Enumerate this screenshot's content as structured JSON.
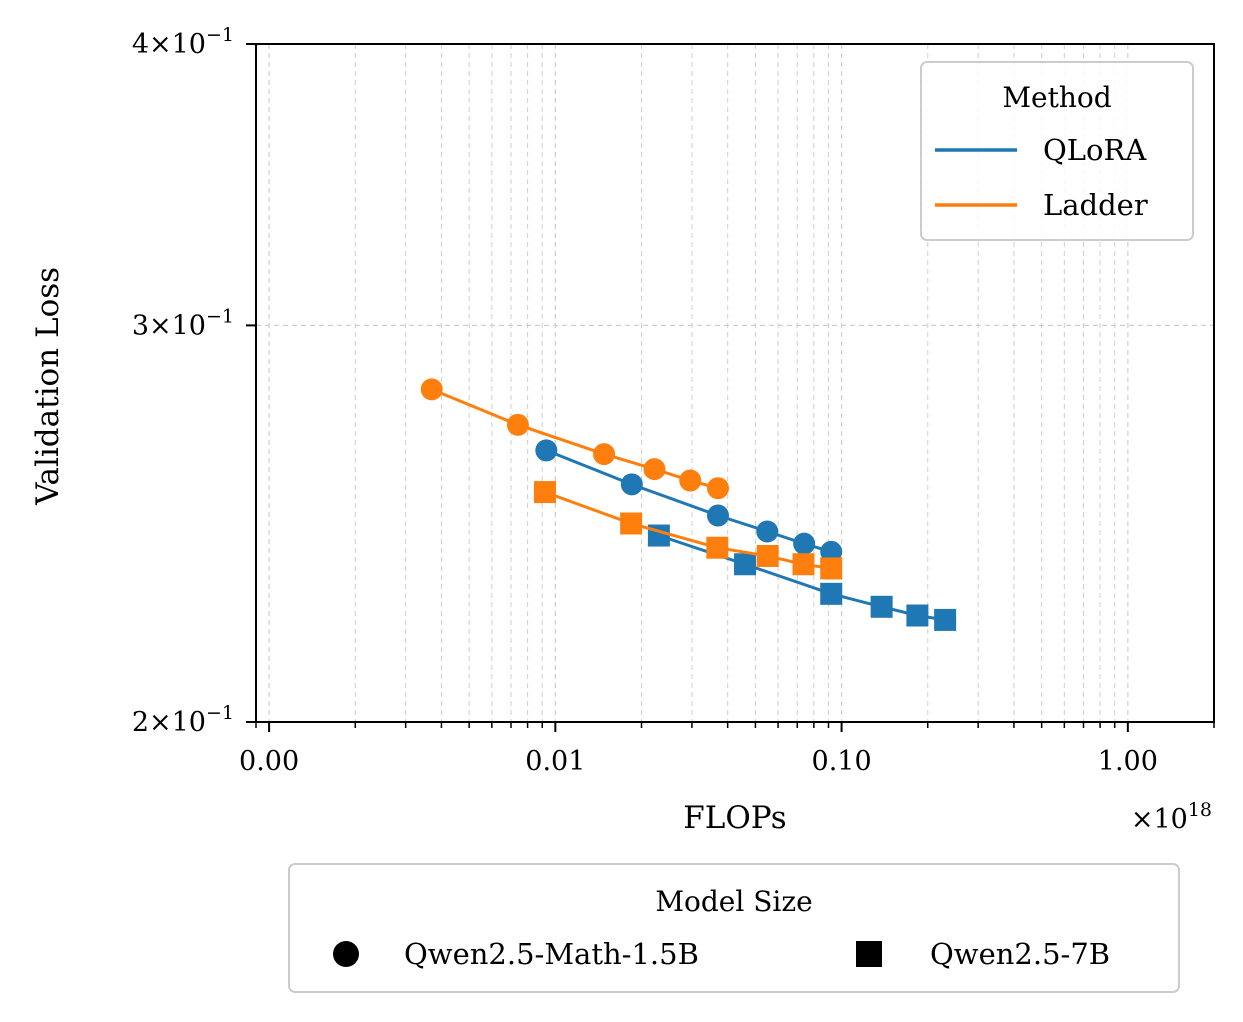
{
  "chart_data": {
    "type": "line",
    "xlabel": "FLOPs",
    "x_multiplier_label": "×10",
    "x_multiplier_exp": "18",
    "ylabel": "Validation Loss",
    "x_scale": "log",
    "y_scale": "log",
    "xlim": [
      0.0009,
      2.0
    ],
    "ylim": [
      0.2,
      0.4
    ],
    "x_ticks": [
      {
        "value": 0.001,
        "label": "0.00"
      },
      {
        "value": 0.01,
        "label": "0.01"
      },
      {
        "value": 0.1,
        "label": "0.10"
      },
      {
        "value": 1.0,
        "label": "1.00"
      }
    ],
    "y_ticks": [
      {
        "value": 0.4,
        "mantissa": "4",
        "exp": "−1"
      },
      {
        "value": 0.3,
        "mantissa": "3",
        "exp": "−1"
      },
      {
        "value": 0.2,
        "mantissa": "2",
        "exp": "−1"
      }
    ],
    "times_symbol": "×10",
    "grid": true,
    "series": [
      {
        "method": "QLoRA",
        "model": "Qwen2.5-Math-1.5B",
        "marker": "circle",
        "color": "#1f77b4",
        "x": [
          0.0093,
          0.0185,
          0.037,
          0.055,
          0.074,
          0.092
        ],
        "y": [
          0.264,
          0.255,
          0.247,
          0.243,
          0.24,
          0.238
        ]
      },
      {
        "method": "QLoRA",
        "model": "Qwen2.5-7B",
        "marker": "square",
        "color": "#1f77b4",
        "x": [
          0.023,
          0.046,
          0.092,
          0.138,
          0.184,
          0.23
        ],
        "y": [
          0.242,
          0.235,
          0.228,
          0.225,
          0.223,
          0.222
        ]
      },
      {
        "method": "Ladder",
        "model": "Qwen2.5-Math-1.5B",
        "marker": "circle",
        "color": "#ff7f0e",
        "x": [
          0.0037,
          0.0074,
          0.0148,
          0.0222,
          0.0296,
          0.037
        ],
        "y": [
          0.281,
          0.271,
          0.263,
          0.259,
          0.256,
          0.254
        ]
      },
      {
        "method": "Ladder",
        "model": "Qwen2.5-7B",
        "marker": "square",
        "color": "#ff7f0e",
        "x": [
          0.0092,
          0.0184,
          0.0368,
          0.0552,
          0.0736,
          0.092
        ],
        "y": [
          0.253,
          0.245,
          0.239,
          0.237,
          0.235,
          0.234
        ]
      }
    ],
    "legend_method": {
      "title": "Method",
      "placement": "top-right",
      "entries": [
        {
          "label": "QLoRA",
          "color": "#1f77b4"
        },
        {
          "label": "Ladder",
          "color": "#ff7f0e"
        }
      ]
    },
    "legend_model": {
      "title": "Model Size",
      "placement": "bottom-center",
      "entries": [
        {
          "label": "Qwen2.5-Math-1.5B",
          "marker": "circle"
        },
        {
          "label": "Qwen2.5-7B",
          "marker": "square"
        }
      ]
    }
  }
}
